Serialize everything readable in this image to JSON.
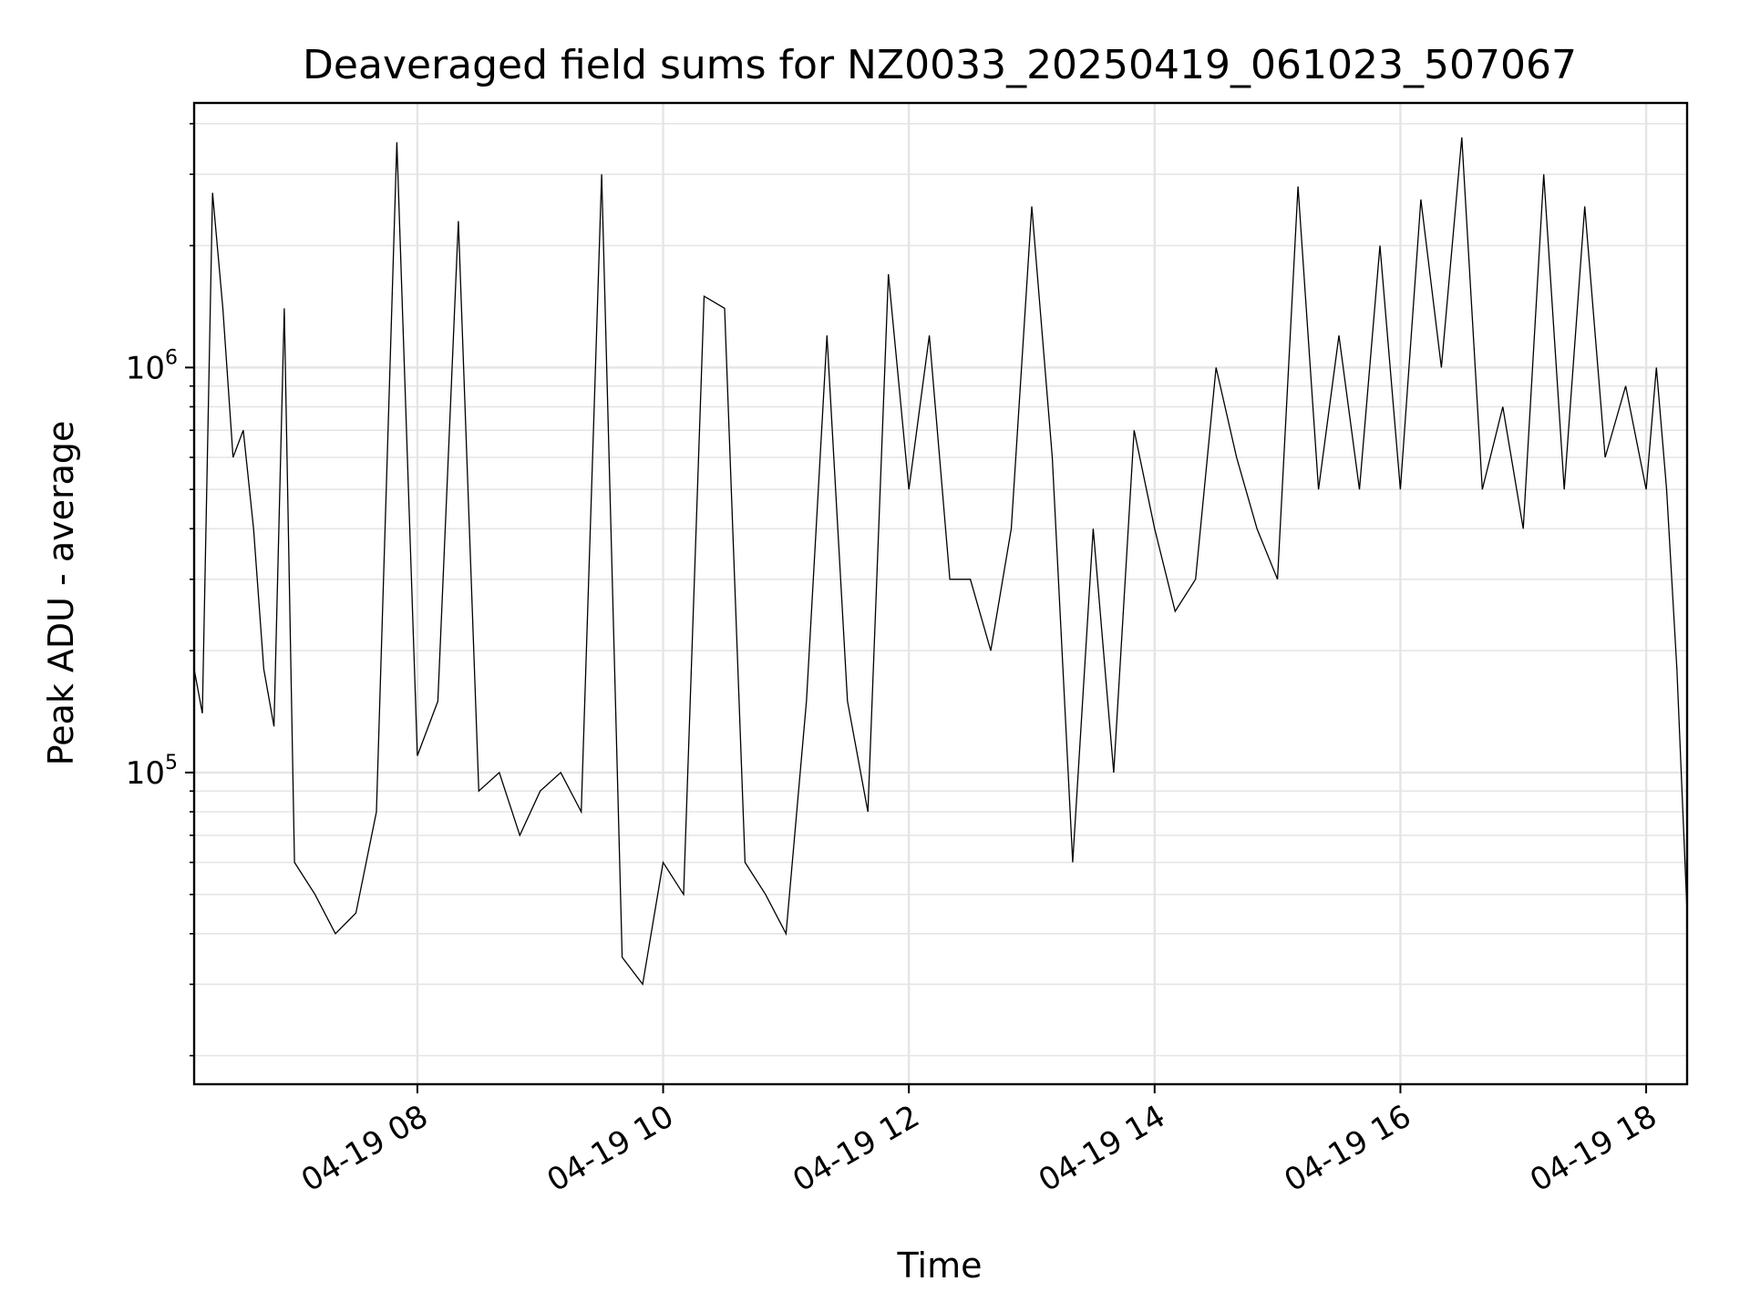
{
  "chart_data": {
    "type": "line",
    "title": "Deaveraged field sums for NZ0033_20250419_061023_507067",
    "xlabel": "Time",
    "ylabel": "Peak ADU - average",
    "yscale": "log",
    "grid": true,
    "legend": "none",
    "line_color": "#000000",
    "grid_color": "#e5e5e5",
    "xlim": [
      "2025-04-19 06:11",
      "2025-04-19 18:20"
    ],
    "ylim": [
      17000,
      4500000
    ],
    "x_ticks": [
      {
        "time": "2025-04-19 08:00",
        "label": "04-19 08"
      },
      {
        "time": "2025-04-19 10:00",
        "label": "04-19 10"
      },
      {
        "time": "2025-04-19 12:00",
        "label": "04-19 12"
      },
      {
        "time": "2025-04-19 14:00",
        "label": "04-19 14"
      },
      {
        "time": "2025-04-19 16:00",
        "label": "04-19 16"
      },
      {
        "time": "2025-04-19 18:00",
        "label": "04-19 18"
      }
    ],
    "y_ticks": [
      {
        "value": 100000,
        "base": "10",
        "exp": "5"
      },
      {
        "value": 1000000,
        "base": "10",
        "exp": "6"
      }
    ],
    "series": [
      {
        "x": [
          "2025-04-19 06:11",
          "2025-04-19 06:15",
          "2025-04-19 06:20",
          "2025-04-19 06:25",
          "2025-04-19 06:30",
          "2025-04-19 06:35",
          "2025-04-19 06:40",
          "2025-04-19 06:45",
          "2025-04-19 06:50",
          "2025-04-19 06:55",
          "2025-04-19 07:00",
          "2025-04-19 07:10",
          "2025-04-19 07:20",
          "2025-04-19 07:30",
          "2025-04-19 07:40",
          "2025-04-19 07:50",
          "2025-04-19 08:00",
          "2025-04-19 08:10",
          "2025-04-19 08:20",
          "2025-04-19 08:30",
          "2025-04-19 08:40",
          "2025-04-19 08:50",
          "2025-04-19 09:00",
          "2025-04-19 09:10",
          "2025-04-19 09:20",
          "2025-04-19 09:30",
          "2025-04-19 09:40",
          "2025-04-19 09:50",
          "2025-04-19 10:00",
          "2025-04-19 10:10",
          "2025-04-19 10:20",
          "2025-04-19 10:30",
          "2025-04-19 10:40",
          "2025-04-19 10:50",
          "2025-04-19 11:00",
          "2025-04-19 11:10",
          "2025-04-19 11:20",
          "2025-04-19 11:30",
          "2025-04-19 11:40",
          "2025-04-19 11:50",
          "2025-04-19 12:00",
          "2025-04-19 12:10",
          "2025-04-19 12:20",
          "2025-04-19 12:30",
          "2025-04-19 12:40",
          "2025-04-19 12:50",
          "2025-04-19 13:00",
          "2025-04-19 13:10",
          "2025-04-19 13:20",
          "2025-04-19 13:30",
          "2025-04-19 13:40",
          "2025-04-19 13:50",
          "2025-04-19 14:00",
          "2025-04-19 14:10",
          "2025-04-19 14:20",
          "2025-04-19 14:30",
          "2025-04-19 14:40",
          "2025-04-19 14:50",
          "2025-04-19 15:00",
          "2025-04-19 15:10",
          "2025-04-19 15:20",
          "2025-04-19 15:30",
          "2025-04-19 15:40",
          "2025-04-19 15:50",
          "2025-04-19 16:00",
          "2025-04-19 16:10",
          "2025-04-19 16:20",
          "2025-04-19 16:30",
          "2025-04-19 16:40",
          "2025-04-19 16:50",
          "2025-04-19 17:00",
          "2025-04-19 17:10",
          "2025-04-19 17:20",
          "2025-04-19 17:30",
          "2025-04-19 17:40",
          "2025-04-19 17:50",
          "2025-04-19 18:00",
          "2025-04-19 18:05",
          "2025-04-19 18:10",
          "2025-04-19 18:15",
          "2025-04-19 18:20"
        ],
        "y": [
          180000,
          140000,
          2700000,
          1400000,
          600000,
          700000,
          400000,
          180000,
          130000,
          1400000,
          60000,
          50000,
          40000,
          45000,
          80000,
          3600000,
          110000,
          150000,
          2300000,
          90000,
          100000,
          70000,
          90000,
          100000,
          80000,
          3000000,
          35000,
          30000,
          60000,
          50000,
          1500000,
          1400000,
          60000,
          50000,
          40000,
          150000,
          1200000,
          150000,
          80000,
          1700000,
          500000,
          1200000,
          300000,
          300000,
          200000,
          400000,
          2500000,
          600000,
          60000,
          400000,
          100000,
          700000,
          400000,
          250000,
          300000,
          1000000,
          600000,
          400000,
          300000,
          2800000,
          500000,
          1200000,
          500000,
          2000000,
          500000,
          2600000,
          1000000,
          3700000,
          500000,
          800000,
          400000,
          3000000,
          500000,
          2500000,
          600000,
          900000,
          500000,
          1000000,
          500000,
          180000,
          45000
        ]
      }
    ]
  }
}
